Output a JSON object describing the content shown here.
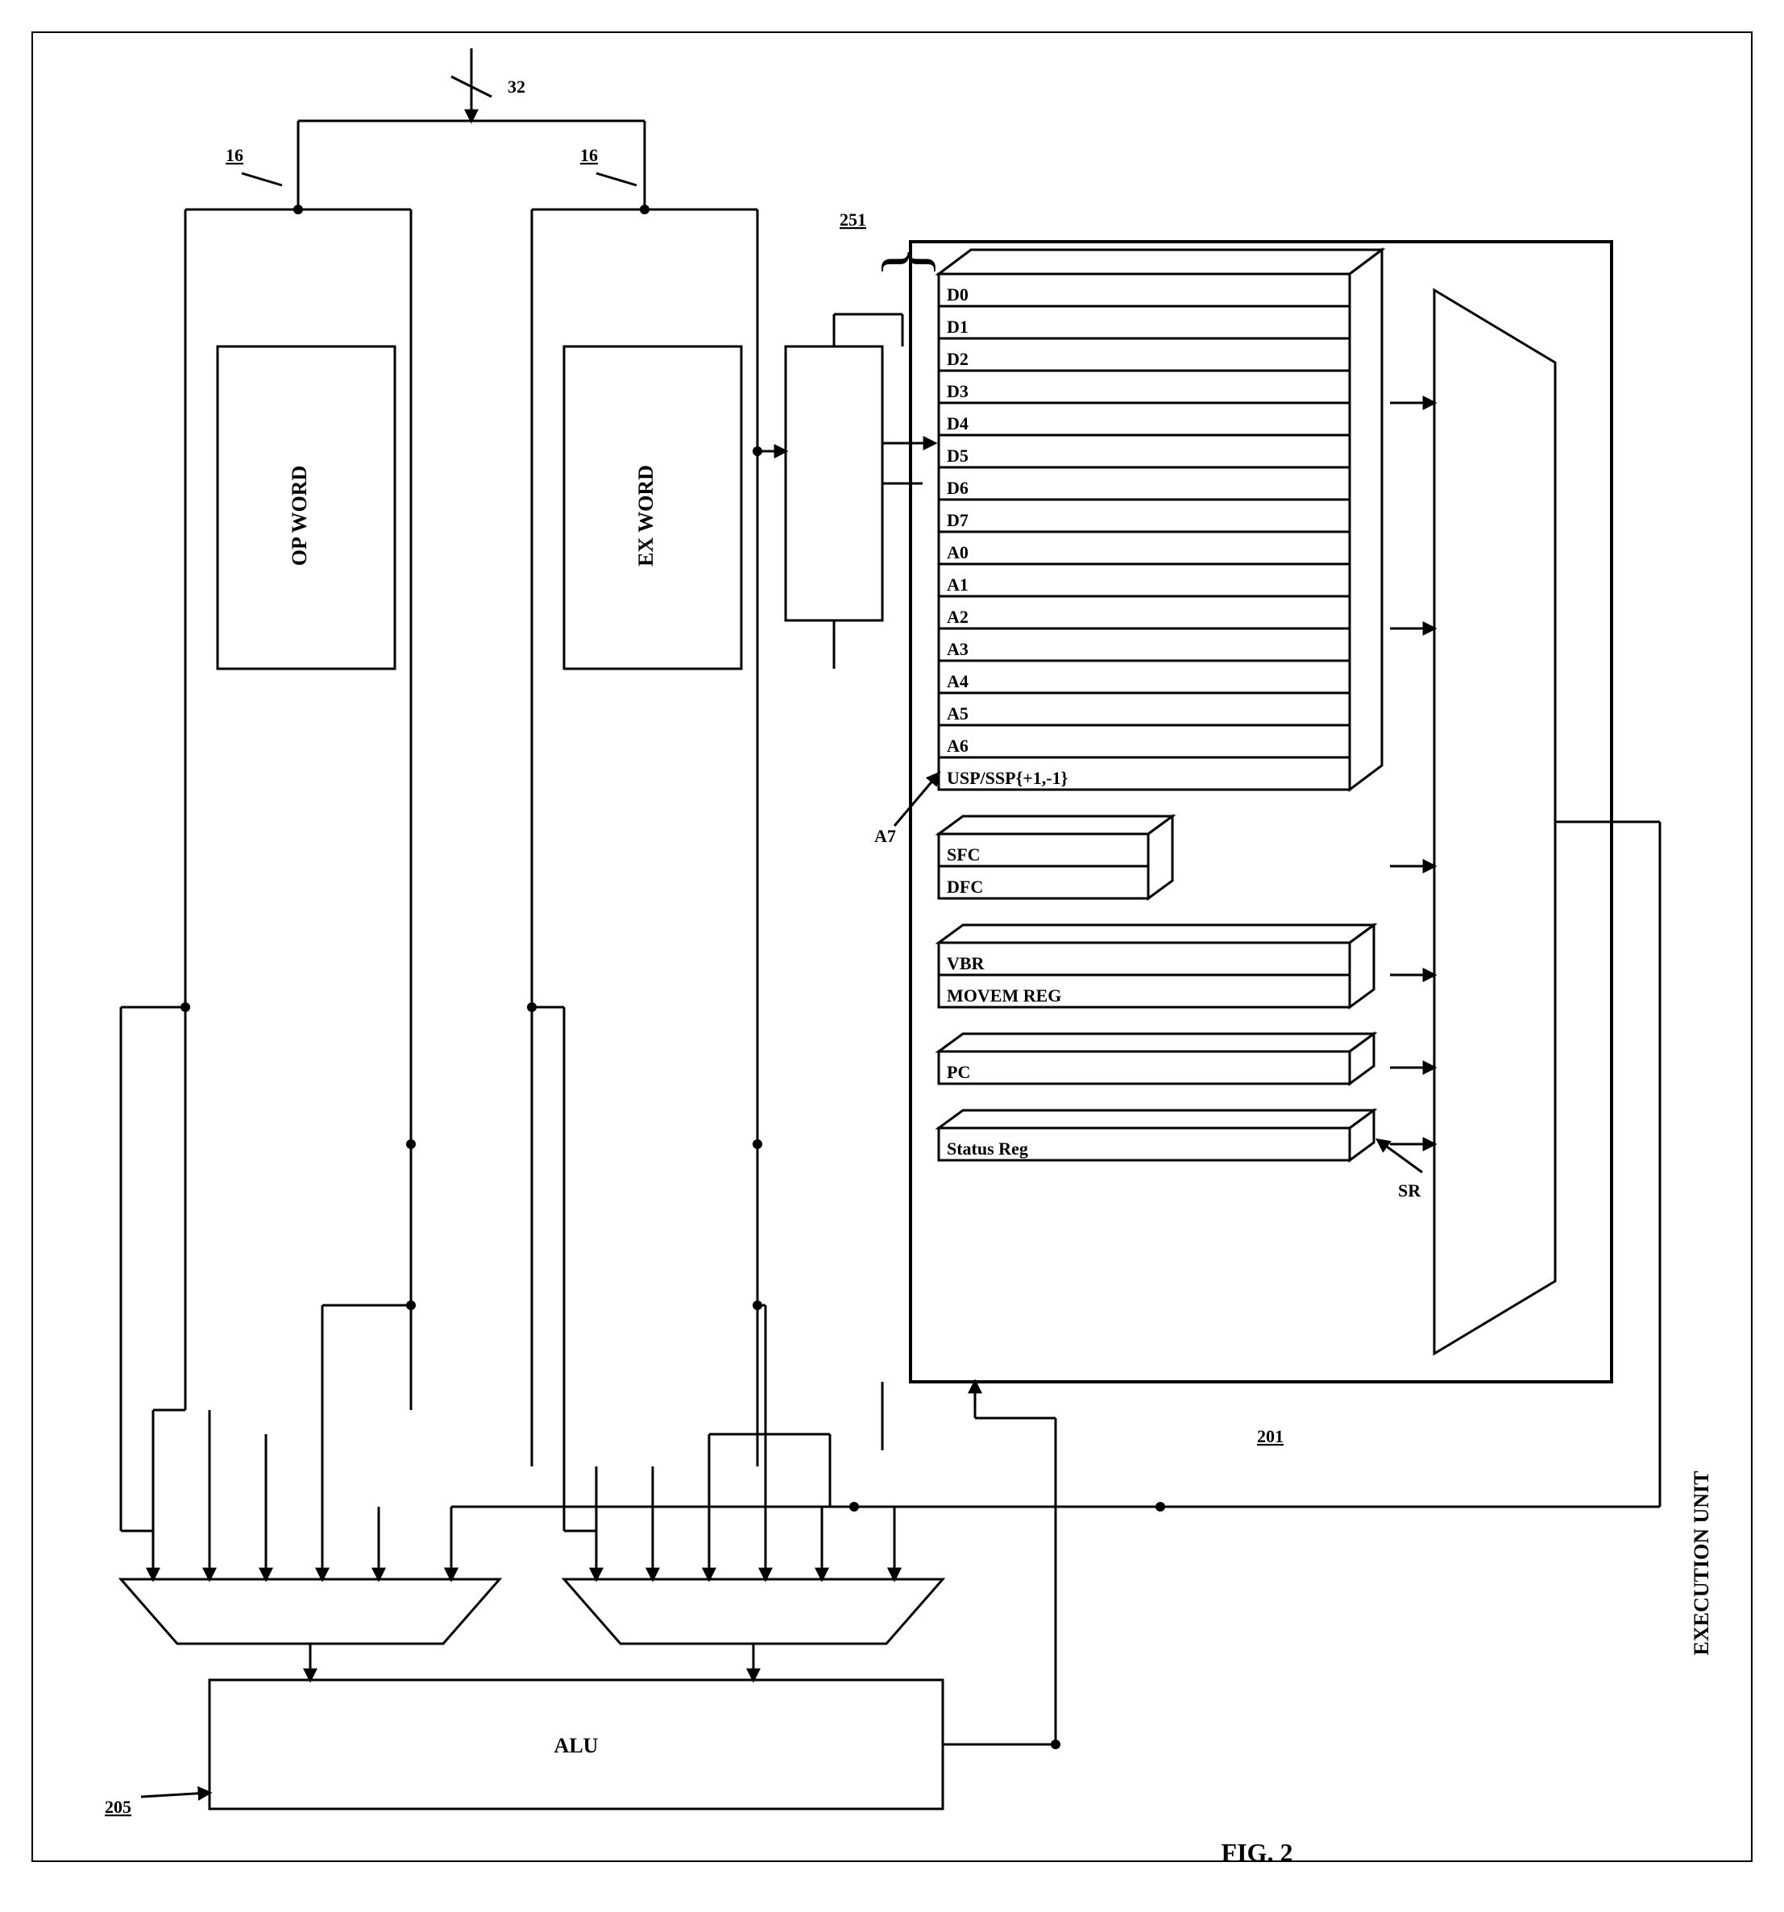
{
  "figure": {
    "caption": "FIG. 2",
    "side_label": "EXECUTION UNIT"
  },
  "bus": {
    "in_label": "32",
    "left_width": "16",
    "right_width": "16"
  },
  "blocks": {
    "op_word": "OP WORD",
    "ex_word": "EX WORD",
    "alu": "ALU"
  },
  "refs": {
    "regfile": "251",
    "unit": "201",
    "alu": "205",
    "a7": "A7",
    "sr": "SR"
  },
  "registers": {
    "main": [
      "D0",
      "D1",
      "D2",
      "D3",
      "D4",
      "D5",
      "D6",
      "D7",
      "A0",
      "A1",
      "A2",
      "A3",
      "A4",
      "A5",
      "A6",
      "USP/SSP{+1,-1}"
    ],
    "short": [
      "SFC",
      "DFC"
    ],
    "vbr": [
      "VBR",
      "MOVEM REG"
    ],
    "pc": "PC",
    "status": "Status Reg"
  },
  "style": {
    "stroke": "#000000",
    "line_w": 3,
    "box_line_w": 3
  }
}
